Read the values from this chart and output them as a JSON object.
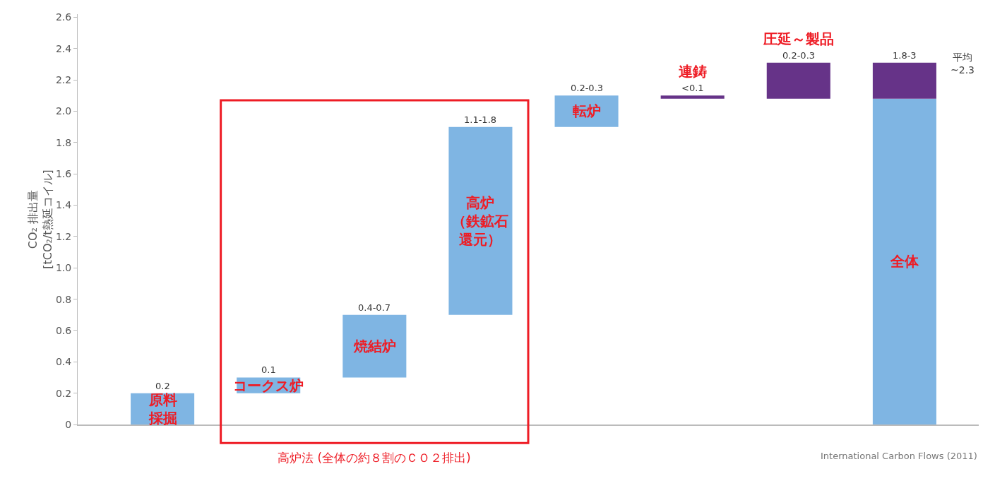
{
  "chart_data": {
    "type": "bar",
    "categories": [
      "原料採掘",
      "コークス炉",
      "焼結炉",
      "高炉（鉄鉱石還元）",
      "転炉",
      "連鋳",
      "圧延～製品",
      "全体"
    ],
    "series": [
      {
        "color": "#7fb5e3",
        "base": [
          0,
          0.2,
          0.3,
          0.7,
          1.9,
          null,
          null,
          0
        ],
        "values": [
          0.2,
          0.1,
          0.4,
          1.2,
          0.2,
          null,
          null,
          2.08
        ]
      },
      {
        "color": "#663388",
        "base": [
          null,
          null,
          null,
          null,
          null,
          2.08,
          2.08,
          2.08
        ],
        "values": [
          null,
          null,
          null,
          null,
          null,
          0.02,
          0.23,
          0.23
        ]
      }
    ],
    "value_labels": [
      "0.2",
      "0.1",
      "0.4-0.7",
      "1.1-1.8",
      "0.2-0.3",
      "<0.1",
      "0.2-0.3",
      "1.8-3"
    ],
    "ylabel": "CO₂ 排出量\n[tCO₂/t熱延コイル]",
    "ylim": [
      0,
      2.62
    ],
    "yticks": [
      0,
      0.2,
      0.4,
      0.6,
      0.8,
      {
        "value": 1,
        "label": "1.0"
      },
      1.2,
      1.4,
      1.6,
      1.8,
      {
        "value": 2,
        "label": "2.0"
      },
      2.2,
      2.4,
      2.6
    ],
    "annotations": [
      "高炉法 (全体の約８割のＣＯ２排出)",
      "平均\n~2.3",
      "International Carbon Flows (2011)"
    ],
    "grid": false
  }
}
